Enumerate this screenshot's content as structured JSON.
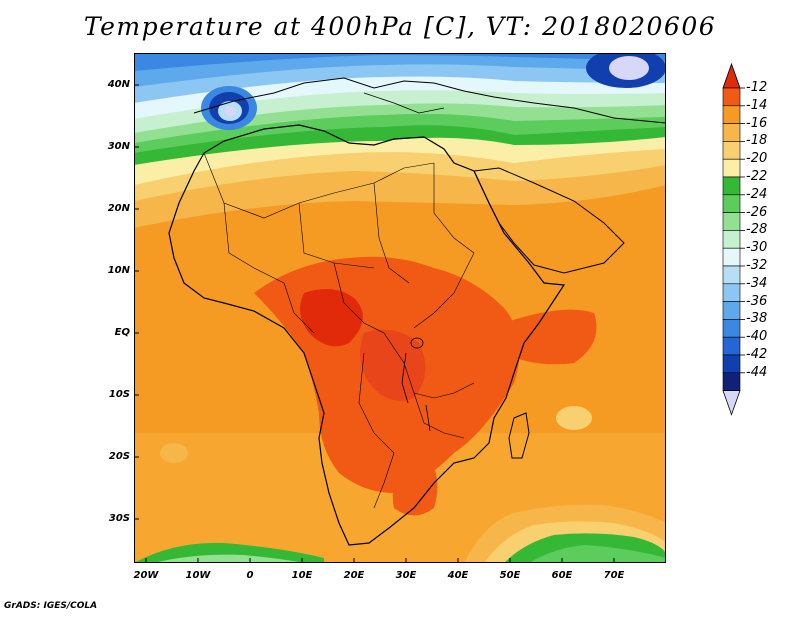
{
  "title": "Temperature at 400hPa [C], VT: 2018020606",
  "credit": "GrADS: IGES/COLA",
  "lat_labels": [
    "40N",
    "30N",
    "20N",
    "10N",
    "EQ",
    "10S",
    "20S",
    "30S"
  ],
  "lon_labels": [
    "20W",
    "10W",
    "0",
    "10E",
    "20E",
    "30E",
    "40E",
    "50E",
    "60E",
    "70E"
  ],
  "colorbar": {
    "levels": [
      "-12",
      "-14",
      "-16",
      "-18",
      "-20",
      "-22",
      "-24",
      "-26",
      "-28",
      "-30",
      "-32",
      "-34",
      "-36",
      "-38",
      "-40",
      "-42",
      "-44"
    ],
    "colors": [
      "#e02a0a",
      "#f05a14",
      "#f59a22",
      "#f7b64a",
      "#f8d070",
      "#fbefa8",
      "#35b835",
      "#5ccc5c",
      "#93e093",
      "#c6f0cf",
      "#e4f7fa",
      "#b6def5",
      "#8cc6f2",
      "#5ea9ec",
      "#3a88e2",
      "#2566d6",
      "#123fae",
      "#0f2278",
      "#d7d7f7"
    ]
  },
  "map": {
    "region": "Africa",
    "lat_range": [
      -37,
      45
    ],
    "lon_range": [
      -23,
      80
    ],
    "colors": {
      "ocean_warm": "#f59a22",
      "land_hot": "#f05a14",
      "core_hot": "#e02a0a",
      "tropic_band": "#f7b64a",
      "mid_band": "#f8d070",
      "pale_band": "#fbefa8",
      "green_band": "#35b835",
      "light_green": "#93e093",
      "cold_pale": "#c6f0cf",
      "cold_light": "#8cc6f2",
      "cold_mid": "#3a88e2",
      "cold_dark": "#123fae",
      "cold_core": "#d7d7f7"
    }
  }
}
